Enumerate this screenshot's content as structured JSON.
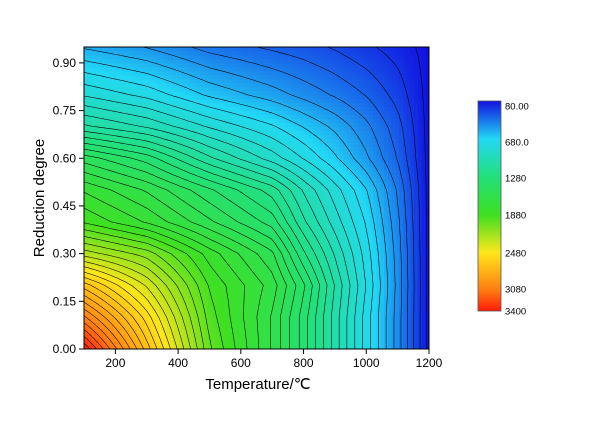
{
  "chart_data": {
    "type": "heatmap",
    "subtype": "filled contour map",
    "xlabel": "Temperature/℃",
    "ylabel": "Reduction degree",
    "x_ticks": [
      "200",
      "400",
      "600",
      "800",
      "1000",
      "1200"
    ],
    "y_ticks": [
      "0.00",
      "0.15",
      "0.30",
      "0.45",
      "0.60",
      "0.75",
      "0.90"
    ],
    "xlim": [
      100,
      1200
    ],
    "ylim": [
      0,
      0.95
    ],
    "x": [
      100,
      300,
      500,
      700,
      800,
      900,
      1000,
      1100,
      1200
    ],
    "y": [
      0,
      0.1,
      0.2,
      0.3,
      0.4,
      0.5,
      0.6,
      0.7,
      0.8,
      0.95
    ],
    "z": [
      [
        3400,
        2700,
        2000,
        1600,
        1350,
        1050,
        750,
        450,
        80
      ],
      [
        3050,
        2550,
        1950,
        1600,
        1350,
        1050,
        750,
        450,
        80
      ],
      [
        2700,
        2350,
        1900,
        1650,
        1400,
        1080,
        780,
        460,
        80
      ],
      [
        2250,
        2100,
        1800,
        1550,
        1250,
        1000,
        750,
        450,
        80
      ],
      [
        1900,
        1750,
        1550,
        1350,
        1100,
        900,
        700,
        430,
        80
      ],
      [
        1750,
        1600,
        1400,
        1200,
        1000,
        820,
        640,
        400,
        80
      ],
      [
        1500,
        1350,
        1100,
        900,
        780,
        650,
        500,
        330,
        80
      ],
      [
        1100,
        1000,
        850,
        720,
        630,
        540,
        430,
        290,
        80
      ],
      [
        850,
        760,
        620,
        520,
        460,
        400,
        330,
        230,
        80
      ],
      [
        550,
        480,
        380,
        320,
        290,
        250,
        200,
        150,
        80
      ]
    ],
    "colorbar": {
      "labels": [
        "80.00",
        "680.0",
        "1280",
        "1880",
        "2480",
        "3080",
        "3400"
      ],
      "values": [
        80,
        680,
        1280,
        1880,
        2480,
        3080,
        3400
      ],
      "colors": [
        "#1010e0",
        "#22d8f5",
        "#22e07a",
        "#3ee022",
        "#ffe61a",
        "#ff7a12",
        "#ff1a0a"
      ]
    },
    "contour_lines": "black",
    "grid": false
  }
}
